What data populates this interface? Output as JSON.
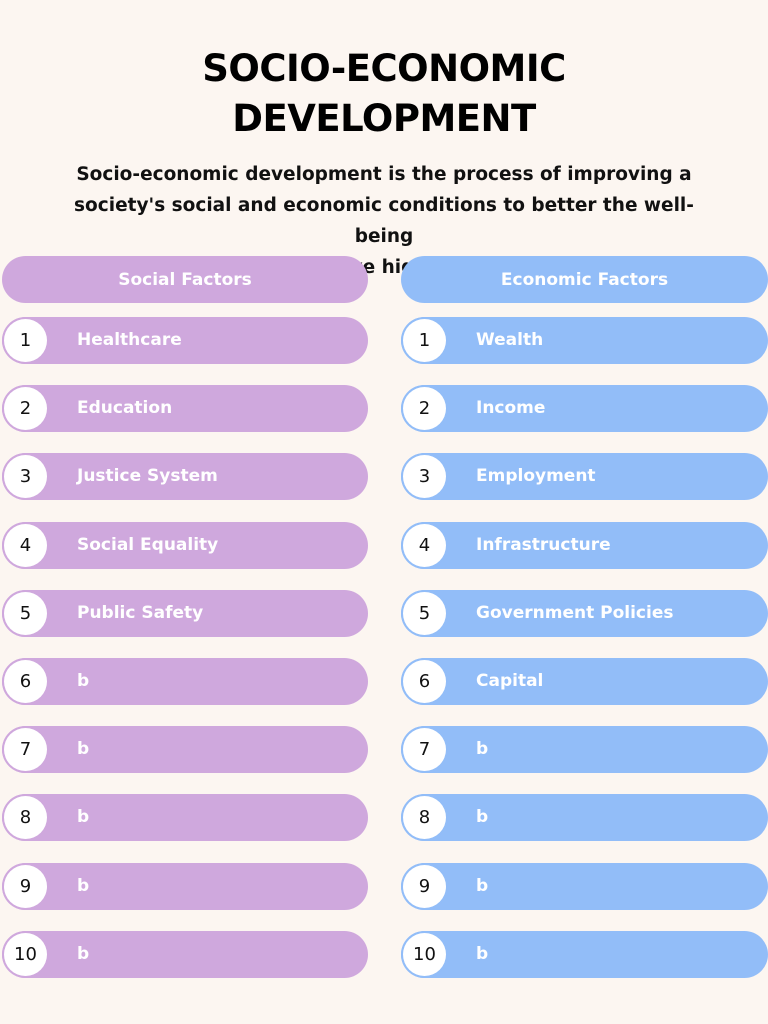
{
  "title_lines": [
    "SOCIO-ECONOMIC",
    "DEVELOPMENT"
  ],
  "intro_lines": [
    "Socio-economic development is the process of improving a",
    "society's social and economic conditions to better the well-being",
    "of its people and achieve high human development."
  ],
  "colors": {
    "background": "#fcf6f1",
    "social": "#cfa8dd",
    "economic": "#92bdf8",
    "text_on_pill": "#ffffff"
  },
  "columns": [
    {
      "header": "Social Factors",
      "items": [
        {
          "number": "1",
          "label": "Healthcare"
        },
        {
          "number": "2",
          "label": "Education"
        },
        {
          "number": "3",
          "label": "Justice System"
        },
        {
          "number": "4",
          "label": "Social Equality"
        },
        {
          "number": "5",
          "label": "Public Safety"
        },
        {
          "number": "6",
          "label": "b"
        },
        {
          "number": "7",
          "label": "b"
        },
        {
          "number": "8",
          "label": "b"
        },
        {
          "number": "9",
          "label": "b"
        },
        {
          "number": "10",
          "label": "b"
        }
      ]
    },
    {
      "header": "Economic Factors",
      "items": [
        {
          "number": "1",
          "label": "Wealth"
        },
        {
          "number": "2",
          "label": "Income"
        },
        {
          "number": "3",
          "label": "Employment"
        },
        {
          "number": "4",
          "label": "Infrastructure"
        },
        {
          "number": "5",
          "label": "Government Policies"
        },
        {
          "number": "6",
          "label": "Capital"
        },
        {
          "number": "7",
          "label": "b"
        },
        {
          "number": "8",
          "label": "b"
        },
        {
          "number": "9",
          "label": "b"
        },
        {
          "number": "10",
          "label": "b"
        }
      ]
    }
  ]
}
